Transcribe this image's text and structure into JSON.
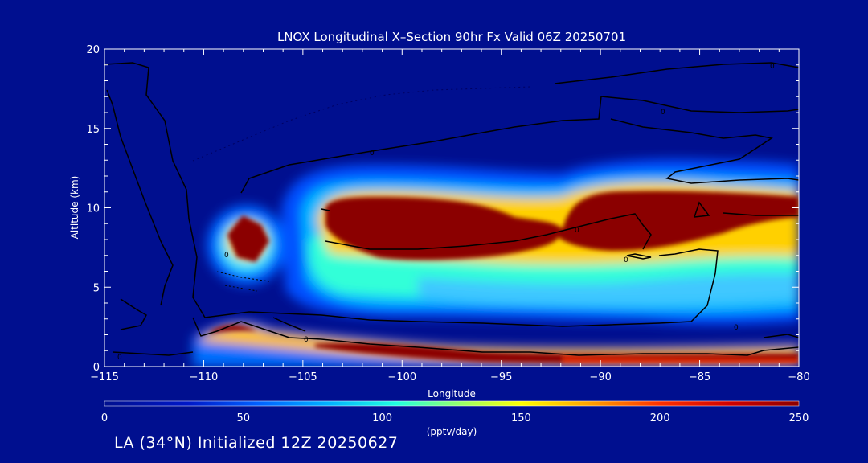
{
  "chart_data": {
    "type": "heatmap",
    "title": "LNOX Longitudinal X–Section 90hr  Fx Valid 06Z 20250701",
    "xlabel": "Longitude",
    "ylabel": "Altitude (km)",
    "xlim": [
      -115,
      -80
    ],
    "ylim": [
      0,
      20
    ],
    "x_ticks": [
      -115,
      -110,
      -105,
      -100,
      -95,
      -90,
      -85,
      -80
    ],
    "x_tick_labels": [
      "−115",
      "−110",
      "−105",
      "−100",
      "−95",
      "−90",
      "−85",
      "−80"
    ],
    "y_ticks": [
      0,
      5,
      10,
      15,
      20
    ],
    "y_tick_labels": [
      "0",
      "5",
      "10",
      "15",
      "20"
    ],
    "colorbar": {
      "label": "(pptv/day)",
      "range": [
        0,
        250
      ],
      "ticks": [
        0,
        50,
        100,
        150,
        200,
        250
      ],
      "tick_labels": [
        "0",
        "50",
        "100",
        "150",
        "200",
        "250"
      ]
    },
    "contour_labels": [
      "0",
      "0",
      "0",
      "0",
      "0",
      "0",
      "0",
      "0",
      "0"
    ],
    "features": [
      {
        "lon_min": -109.2,
        "lon_max": -107.0,
        "alt_min": 6.5,
        "alt_max": 9.0,
        "value": 250
      },
      {
        "lon_min": -104.7,
        "lon_max": -92.5,
        "alt_min": 7.0,
        "alt_max": 10.2,
        "value": 250
      },
      {
        "lon_min": -91.5,
        "lon_max": -80.0,
        "alt_min": 6.8,
        "alt_max": 10.3,
        "value": 250
      },
      {
        "lon_min": -109.5,
        "lon_max": -108.0,
        "alt_min": 2.0,
        "alt_max": 2.8,
        "value": 250
      },
      {
        "lon_min": -106.0,
        "lon_max": -80.0,
        "alt_min": 0.6,
        "alt_max": 1.8,
        "value": 240
      }
    ]
  },
  "footer": {
    "text": "LA (34°N) Initialized 12Z 20250627"
  }
}
